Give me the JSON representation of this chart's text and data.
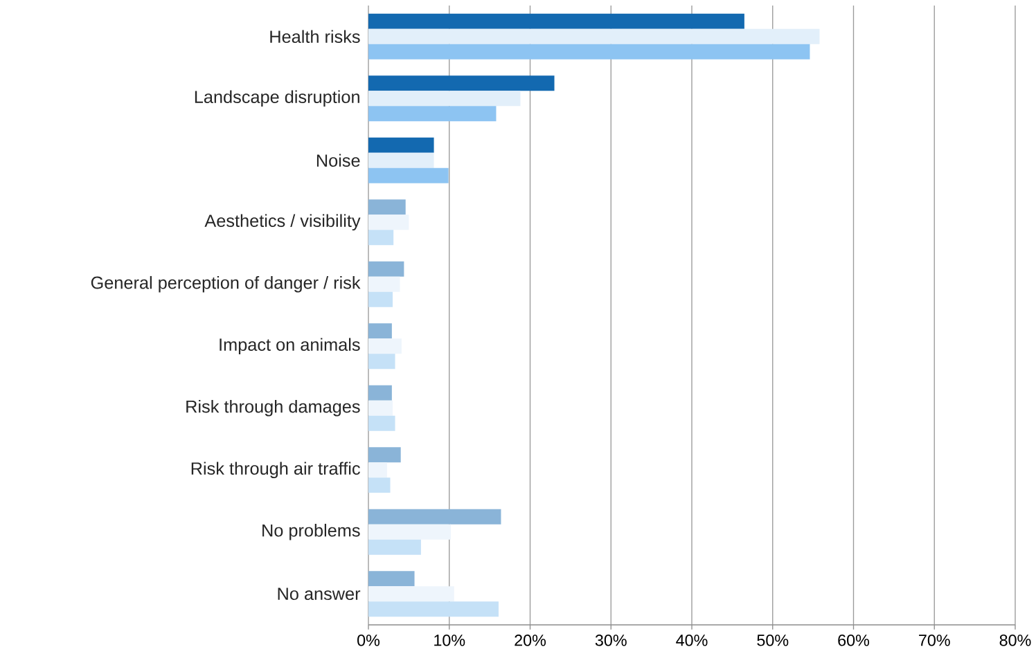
{
  "chart_data": {
    "type": "bar",
    "orientation": "horizontal",
    "categories": [
      "Health risks",
      "Landscape disruption",
      "Noise",
      "Aesthetics / visibility",
      "General perception of danger / risk",
      "Impact on animals",
      "Risk through damages",
      "Risk through air traffic",
      "No problems",
      "No answer"
    ],
    "series": [
      {
        "colors": [
          "#1369b0",
          "#1369b0",
          "#1369b0",
          "#8ab4d8",
          "#8ab4d8",
          "#8ab4d8",
          "#8ab4d8",
          "#8ab4d8",
          "#8ab4d8",
          "#8ab4d8"
        ],
        "values": [
          46.5,
          23.0,
          8.1,
          4.6,
          4.4,
          2.9,
          2.9,
          4.0,
          16.4,
          5.7
        ]
      },
      {
        "colors": [
          "#e2effa",
          "#e2effa",
          "#e2effa",
          "#eef5fc",
          "#eef5fc",
          "#eef5fc",
          "#eef5fc",
          "#eef5fc",
          "#eef5fc",
          "#eef5fc"
        ],
        "values": [
          55.8,
          18.8,
          8.1,
          5.0,
          3.9,
          4.1,
          3.0,
          2.3,
          10.2,
          10.6
        ]
      },
      {
        "colors": [
          "#8dc4f2",
          "#8dc4f2",
          "#8dc4f2",
          "#c5e1f7",
          "#c5e1f7",
          "#c5e1f7",
          "#c5e1f7",
          "#c5e1f7",
          "#c5e1f7",
          "#c5e1f7"
        ],
        "values": [
          54.6,
          15.8,
          9.9,
          3.1,
          3.0,
          3.3,
          3.3,
          2.7,
          6.5,
          16.1
        ]
      }
    ],
    "xlim": [
      0,
      80
    ],
    "xticks": [
      {
        "value": 0,
        "label": "0%"
      },
      {
        "value": 10,
        "label": "10%"
      },
      {
        "value": 20,
        "label": "20%"
      },
      {
        "value": 30,
        "label": "30%"
      },
      {
        "value": 40,
        "label": "40%"
      },
      {
        "value": 50,
        "label": "50%"
      },
      {
        "value": 60,
        "label": "60%"
      },
      {
        "value": 70,
        "label": "70%"
      },
      {
        "value": 80,
        "label": "80%"
      }
    ],
    "grid": "x"
  }
}
